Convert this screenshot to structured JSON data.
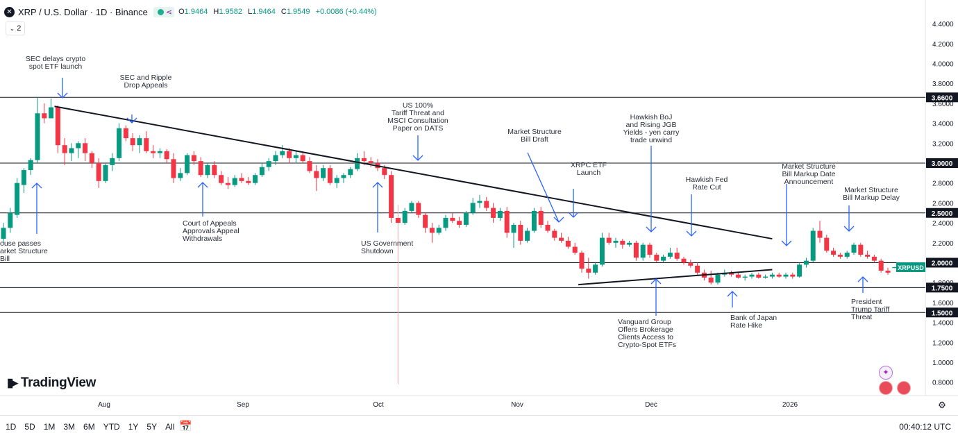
{
  "header": {
    "symbol_icon": "xrp-icon",
    "title": "XRP / U.S. Dollar · 1D · Binance",
    "ohlc": {
      "o_label": "O",
      "o": "1.9464",
      "h_label": "H",
      "h": "1.9582",
      "l_label": "L",
      "l": "1.9464",
      "c_label": "C",
      "c": "1.9549",
      "change": "+0.0086 (+0.44%)"
    },
    "indicator_count": "2",
    "collapse_icon": "chevron-down-icon"
  },
  "brand": {
    "name": "TradingView",
    "icon": "tradingview-logo"
  },
  "footer": {
    "ranges": [
      "1D",
      "5D",
      "1M",
      "3M",
      "6M",
      "YTD",
      "1Y",
      "5Y",
      "All"
    ],
    "date_range_icon": "calendar-arrow-icon",
    "clock": "00:40:12 UTC",
    "settings_icon": "gear-icon"
  },
  "chart_data": {
    "type": "candlestick",
    "symbol": "XRPUSD",
    "colors": {
      "up": "#089981",
      "down": "#f23645",
      "trendline": "#131722",
      "annotation": "#2962ff",
      "hline": "#131722",
      "last_price": "#089981"
    },
    "y_axis": {
      "min": 0.7,
      "max": 4.6,
      "ticks": [
        "4.4000",
        "4.2000",
        "4.0000",
        "3.8000",
        "3.6000",
        "3.4000",
        "3.2000",
        "3.0000",
        "2.8000",
        "2.6000",
        "2.4000",
        "2.2000",
        "2.0000",
        "1.8000",
        "1.6000",
        "1.4000",
        "1.2000",
        "1.0000",
        "0.8000"
      ]
    },
    "x_axis": {
      "labels": [
        "Aug",
        "Sep",
        "Oct",
        "Nov",
        "Dec",
        "2026"
      ]
    },
    "last_price": {
      "label": "XRPUSD",
      "value": 1.9549
    },
    "horizontal_lines": [
      {
        "label": "3.6600",
        "value": 3.66
      },
      {
        "label": "3.0000",
        "value": 3.0
      },
      {
        "label": "2.5000",
        "value": 2.5
      },
      {
        "label": "2.0000",
        "value": 2.0
      },
      {
        "label": "1.7500",
        "value": 1.75
      },
      {
        "label": "1.5000",
        "value": 1.5
      }
    ],
    "trendlines": [
      {
        "from": {
          "day": 15,
          "price": 3.57
        },
        "to": {
          "day": 226,
          "price": 2.24
        }
      },
      {
        "from": {
          "day": 169,
          "price": 1.78
        },
        "to": {
          "day": 226,
          "price": 1.93
        }
      }
    ],
    "candles": [
      {
        "day": 0,
        "o": 2.24,
        "h": 2.4,
        "l": 2.2,
        "c": 2.35
      },
      {
        "day": 2,
        "o": 2.35,
        "h": 2.55,
        "l": 2.3,
        "c": 2.5
      },
      {
        "day": 4,
        "o": 2.48,
        "h": 2.85,
        "l": 2.45,
        "c": 2.8
      },
      {
        "day": 6,
        "o": 2.78,
        "h": 2.95,
        "l": 2.7,
        "c": 2.93
      },
      {
        "day": 8,
        "o": 2.93,
        "h": 3.05,
        "l": 2.88,
        "c": 3.03
      },
      {
        "day": 10,
        "o": 3.03,
        "h": 3.66,
        "l": 3.0,
        "c": 3.5
      },
      {
        "day": 12,
        "o": 3.5,
        "h": 3.6,
        "l": 3.4,
        "c": 3.45
      },
      {
        "day": 14,
        "o": 3.45,
        "h": 3.65,
        "l": 3.45,
        "c": 3.56
      },
      {
        "day": 16,
        "o": 3.56,
        "h": 3.58,
        "l": 3.1,
        "c": 3.18
      },
      {
        "day": 18,
        "o": 3.18,
        "h": 3.25,
        "l": 2.98,
        "c": 3.1
      },
      {
        "day": 20,
        "o": 3.1,
        "h": 3.2,
        "l": 3.02,
        "c": 3.15
      },
      {
        "day": 22,
        "o": 3.15,
        "h": 3.22,
        "l": 3.05,
        "c": 3.2
      },
      {
        "day": 24,
        "o": 3.2,
        "h": 3.25,
        "l": 3.02,
        "c": 3.1
      },
      {
        "day": 26,
        "o": 3.1,
        "h": 3.12,
        "l": 2.95,
        "c": 3.0
      },
      {
        "day": 28,
        "o": 3.0,
        "h": 3.05,
        "l": 2.75,
        "c": 2.82
      },
      {
        "day": 30,
        "o": 2.82,
        "h": 3.0,
        "l": 2.8,
        "c": 2.98
      },
      {
        "day": 32,
        "o": 2.98,
        "h": 3.1,
        "l": 2.92,
        "c": 3.05
      },
      {
        "day": 34,
        "o": 3.05,
        "h": 3.4,
        "l": 3.02,
        "c": 3.35
      },
      {
        "day": 36,
        "o": 3.35,
        "h": 3.38,
        "l": 3.22,
        "c": 3.25
      },
      {
        "day": 38,
        "o": 3.25,
        "h": 3.3,
        "l": 3.12,
        "c": 3.18
      },
      {
        "day": 40,
        "o": 3.18,
        "h": 3.28,
        "l": 3.1,
        "c": 3.25
      },
      {
        "day": 42,
        "o": 3.25,
        "h": 3.32,
        "l": 3.1,
        "c": 3.12
      },
      {
        "day": 44,
        "o": 3.12,
        "h": 3.18,
        "l": 3.05,
        "c": 3.1
      },
      {
        "day": 46,
        "o": 3.1,
        "h": 3.15,
        "l": 3.05,
        "c": 3.12
      },
      {
        "day": 48,
        "o": 3.12,
        "h": 3.14,
        "l": 3.0,
        "c": 3.04
      },
      {
        "day": 50,
        "o": 3.04,
        "h": 3.1,
        "l": 2.8,
        "c": 2.85
      },
      {
        "day": 52,
        "o": 2.85,
        "h": 2.95,
        "l": 2.82,
        "c": 2.9
      },
      {
        "day": 54,
        "o": 2.9,
        "h": 3.1,
        "l": 2.88,
        "c": 3.08
      },
      {
        "day": 56,
        "o": 3.08,
        "h": 3.12,
        "l": 2.98,
        "c": 3.02
      },
      {
        "day": 58,
        "o": 3.02,
        "h": 3.06,
        "l": 2.86,
        "c": 2.88
      },
      {
        "day": 60,
        "o": 2.88,
        "h": 3.0,
        "l": 2.85,
        "c": 2.98
      },
      {
        "day": 62,
        "o": 2.98,
        "h": 3.02,
        "l": 2.85,
        "c": 2.88
      },
      {
        "day": 64,
        "o": 2.88,
        "h": 2.92,
        "l": 2.78,
        "c": 2.8
      },
      {
        "day": 66,
        "o": 2.8,
        "h": 2.86,
        "l": 2.74,
        "c": 2.78
      },
      {
        "day": 68,
        "o": 2.78,
        "h": 2.88,
        "l": 2.76,
        "c": 2.85
      },
      {
        "day": 70,
        "o": 2.85,
        "h": 2.9,
        "l": 2.8,
        "c": 2.82
      },
      {
        "day": 72,
        "o": 2.82,
        "h": 2.86,
        "l": 2.78,
        "c": 2.8
      },
      {
        "day": 74,
        "o": 2.8,
        "h": 2.9,
        "l": 2.78,
        "c": 2.88
      },
      {
        "day": 76,
        "o": 2.88,
        "h": 3.0,
        "l": 2.86,
        "c": 2.96
      },
      {
        "day": 78,
        "o": 2.96,
        "h": 3.05,
        "l": 2.92,
        "c": 3.02
      },
      {
        "day": 80,
        "o": 3.02,
        "h": 3.12,
        "l": 2.98,
        "c": 3.08
      },
      {
        "day": 82,
        "o": 3.08,
        "h": 3.18,
        "l": 3.05,
        "c": 3.12
      },
      {
        "day": 84,
        "o": 3.12,
        "h": 3.15,
        "l": 3.0,
        "c": 3.05
      },
      {
        "day": 86,
        "o": 3.05,
        "h": 3.12,
        "l": 3.0,
        "c": 3.08
      },
      {
        "day": 88,
        "o": 3.08,
        "h": 3.1,
        "l": 3.0,
        "c": 3.02
      },
      {
        "day": 90,
        "o": 3.02,
        "h": 3.06,
        "l": 2.9,
        "c": 2.92
      },
      {
        "day": 92,
        "o": 2.92,
        "h": 2.98,
        "l": 2.72,
        "c": 2.85
      },
      {
        "day": 94,
        "o": 2.85,
        "h": 2.98,
        "l": 2.82,
        "c": 2.95
      },
      {
        "day": 96,
        "o": 2.95,
        "h": 2.98,
        "l": 2.78,
        "c": 2.8
      },
      {
        "day": 98,
        "o": 2.8,
        "h": 2.88,
        "l": 2.75,
        "c": 2.85
      },
      {
        "day": 100,
        "o": 2.85,
        "h": 2.9,
        "l": 2.8,
        "c": 2.88
      },
      {
        "day": 102,
        "o": 2.88,
        "h": 2.96,
        "l": 2.85,
        "c": 2.94
      },
      {
        "day": 104,
        "o": 2.94,
        "h": 3.1,
        "l": 2.92,
        "c": 3.05
      },
      {
        "day": 106,
        "o": 3.05,
        "h": 3.12,
        "l": 2.98,
        "c": 3.02
      },
      {
        "day": 108,
        "o": 3.02,
        "h": 3.06,
        "l": 2.96,
        "c": 3.0
      },
      {
        "day": 110,
        "o": 3.0,
        "h": 3.04,
        "l": 2.92,
        "c": 2.95
      },
      {
        "day": 112,
        "o": 2.95,
        "h": 2.98,
        "l": 2.84,
        "c": 2.88
      },
      {
        "day": 114,
        "o": 2.88,
        "h": 2.92,
        "l": 2.4,
        "c": 2.45
      },
      {
        "day": 116,
        "o": 2.45,
        "h": 2.58,
        "l": 0.78,
        "c": 2.4
      },
      {
        "day": 118,
        "o": 2.4,
        "h": 2.55,
        "l": 2.38,
        "c": 2.52
      },
      {
        "day": 120,
        "o": 2.52,
        "h": 2.62,
        "l": 2.5,
        "c": 2.6
      },
      {
        "day": 122,
        "o": 2.6,
        "h": 2.62,
        "l": 2.45,
        "c": 2.48
      },
      {
        "day": 124,
        "o": 2.48,
        "h": 2.5,
        "l": 2.3,
        "c": 2.35
      },
      {
        "day": 126,
        "o": 2.35,
        "h": 2.4,
        "l": 2.2,
        "c": 2.3
      },
      {
        "day": 128,
        "o": 2.3,
        "h": 2.38,
        "l": 2.28,
        "c": 2.35
      },
      {
        "day": 130,
        "o": 2.35,
        "h": 2.48,
        "l": 2.32,
        "c": 2.45
      },
      {
        "day": 132,
        "o": 2.45,
        "h": 2.5,
        "l": 2.4,
        "c": 2.42
      },
      {
        "day": 134,
        "o": 2.42,
        "h": 2.46,
        "l": 2.35,
        "c": 2.38
      },
      {
        "day": 136,
        "o": 2.38,
        "h": 2.52,
        "l": 2.36,
        "c": 2.5
      },
      {
        "day": 138,
        "o": 2.5,
        "h": 2.65,
        "l": 2.48,
        "c": 2.6
      },
      {
        "day": 140,
        "o": 2.6,
        "h": 2.68,
        "l": 2.55,
        "c": 2.62
      },
      {
        "day": 142,
        "o": 2.62,
        "h": 2.66,
        "l": 2.52,
        "c": 2.55
      },
      {
        "day": 144,
        "o": 2.55,
        "h": 2.6,
        "l": 2.4,
        "c": 2.45
      },
      {
        "day": 146,
        "o": 2.45,
        "h": 2.55,
        "l": 2.42,
        "c": 2.52
      },
      {
        "day": 148,
        "o": 2.52,
        "h": 2.56,
        "l": 2.25,
        "c": 2.3
      },
      {
        "day": 150,
        "o": 2.3,
        "h": 2.4,
        "l": 2.15,
        "c": 2.38
      },
      {
        "day": 152,
        "o": 2.38,
        "h": 2.42,
        "l": 2.18,
        "c": 2.22
      },
      {
        "day": 154,
        "o": 2.22,
        "h": 2.35,
        "l": 2.2,
        "c": 2.32
      },
      {
        "day": 156,
        "o": 2.32,
        "h": 2.55,
        "l": 2.3,
        "c": 2.52
      },
      {
        "day": 158,
        "o": 2.52,
        "h": 2.56,
        "l": 2.35,
        "c": 2.38
      },
      {
        "day": 160,
        "o": 2.38,
        "h": 2.42,
        "l": 2.3,
        "c": 2.32
      },
      {
        "day": 162,
        "o": 2.32,
        "h": 2.34,
        "l": 2.22,
        "c": 2.25
      },
      {
        "day": 164,
        "o": 2.25,
        "h": 2.3,
        "l": 2.2,
        "c": 2.22
      },
      {
        "day": 166,
        "o": 2.22,
        "h": 2.26,
        "l": 2.14,
        "c": 2.16
      },
      {
        "day": 168,
        "o": 2.16,
        "h": 2.2,
        "l": 2.08,
        "c": 2.1
      },
      {
        "day": 170,
        "o": 2.1,
        "h": 2.12,
        "l": 1.9,
        "c": 1.94
      },
      {
        "day": 172,
        "o": 1.94,
        "h": 2.05,
        "l": 1.84,
        "c": 1.9
      },
      {
        "day": 174,
        "o": 1.9,
        "h": 2.0,
        "l": 1.88,
        "c": 1.98
      },
      {
        "day": 176,
        "o": 1.98,
        "h": 2.3,
        "l": 1.96,
        "c": 2.25
      },
      {
        "day": 178,
        "o": 2.25,
        "h": 2.3,
        "l": 2.18,
        "c": 2.2
      },
      {
        "day": 180,
        "o": 2.2,
        "h": 2.25,
        "l": 2.15,
        "c": 2.22
      },
      {
        "day": 182,
        "o": 2.22,
        "h": 2.24,
        "l": 2.14,
        "c": 2.18
      },
      {
        "day": 184,
        "o": 2.18,
        "h": 2.22,
        "l": 2.16,
        "c": 2.2
      },
      {
        "day": 186,
        "o": 2.2,
        "h": 2.22,
        "l": 2.02,
        "c": 2.05
      },
      {
        "day": 188,
        "o": 2.05,
        "h": 2.2,
        "l": 2.02,
        "c": 2.18
      },
      {
        "day": 190,
        "o": 2.18,
        "h": 2.2,
        "l": 2.05,
        "c": 2.08
      },
      {
        "day": 192,
        "o": 2.08,
        "h": 2.1,
        "l": 2.0,
        "c": 2.02
      },
      {
        "day": 194,
        "o": 2.02,
        "h": 2.08,
        "l": 2.0,
        "c": 2.06
      },
      {
        "day": 196,
        "o": 2.06,
        "h": 2.15,
        "l": 2.04,
        "c": 2.1
      },
      {
        "day": 198,
        "o": 2.1,
        "h": 2.15,
        "l": 2.02,
        "c": 2.04
      },
      {
        "day": 200,
        "o": 2.04,
        "h": 2.06,
        "l": 1.98,
        "c": 2.0
      },
      {
        "day": 202,
        "o": 2.0,
        "h": 2.03,
        "l": 1.95,
        "c": 1.97
      },
      {
        "day": 204,
        "o": 1.97,
        "h": 2.0,
        "l": 1.88,
        "c": 1.9
      },
      {
        "day": 206,
        "o": 1.9,
        "h": 1.93,
        "l": 1.82,
        "c": 1.85
      },
      {
        "day": 208,
        "o": 1.85,
        "h": 1.92,
        "l": 1.78,
        "c": 1.8
      },
      {
        "day": 210,
        "o": 1.8,
        "h": 1.9,
        "l": 1.78,
        "c": 1.88
      },
      {
        "day": 212,
        "o": 1.88,
        "h": 1.93,
        "l": 1.86,
        "c": 1.9
      },
      {
        "day": 214,
        "o": 1.9,
        "h": 1.92,
        "l": 1.86,
        "c": 1.88
      },
      {
        "day": 216,
        "o": 1.88,
        "h": 1.9,
        "l": 1.84,
        "c": 1.85
      },
      {
        "day": 218,
        "o": 1.85,
        "h": 1.88,
        "l": 1.82,
        "c": 1.86
      },
      {
        "day": 220,
        "o": 1.86,
        "h": 1.9,
        "l": 1.84,
        "c": 1.88
      },
      {
        "day": 222,
        "o": 1.88,
        "h": 1.9,
        "l": 1.84,
        "c": 1.85
      },
      {
        "day": 224,
        "o": 1.85,
        "h": 1.88,
        "l": 1.84,
        "c": 1.86
      }
    ],
    "candles_tail": [
      {
        "day": 226,
        "o": 1.86,
        "h": 1.9,
        "l": 1.84,
        "c": 1.88
      },
      {
        "day": 228,
        "o": 1.88,
        "h": 1.9,
        "l": 1.85,
        "c": 1.86
      },
      {
        "day": 230,
        "o": 1.86,
        "h": 1.9,
        "l": 1.84,
        "c": 1.88
      },
      {
        "day": 232,
        "o": 1.88,
        "h": 1.9,
        "l": 1.84,
        "c": 1.86
      },
      {
        "day": 234,
        "o": 1.86,
        "h": 2.0,
        "l": 1.85,
        "c": 1.98
      },
      {
        "day": 236,
        "o": 1.98,
        "h": 2.05,
        "l": 1.95,
        "c": 2.02
      },
      {
        "day": 238,
        "o": 2.02,
        "h": 2.35,
        "l": 2.0,
        "c": 2.32
      },
      {
        "day": 240,
        "o": 2.32,
        "h": 2.42,
        "l": 2.2,
        "c": 2.25
      },
      {
        "day": 242,
        "o": 2.25,
        "h": 2.28,
        "l": 2.1,
        "c": 2.12
      },
      {
        "day": 244,
        "o": 2.12,
        "h": 2.15,
        "l": 2.06,
        "c": 2.08
      },
      {
        "day": 246,
        "o": 2.08,
        "h": 2.1,
        "l": 2.04,
        "c": 2.06
      },
      {
        "day": 248,
        "o": 2.06,
        "h": 2.12,
        "l": 2.04,
        "c": 2.1
      },
      {
        "day": 250,
        "o": 2.1,
        "h": 2.2,
        "l": 2.08,
        "c": 2.18
      },
      {
        "day": 252,
        "o": 2.18,
        "h": 2.2,
        "l": 2.06,
        "c": 2.08
      },
      {
        "day": 254,
        "o": 2.08,
        "h": 2.12,
        "l": 2.04,
        "c": 2.06
      },
      {
        "day": 256,
        "o": 2.06,
        "h": 2.08,
        "l": 2.0,
        "c": 2.02
      },
      {
        "day": 258,
        "o": 2.02,
        "h": 2.04,
        "l": 1.9,
        "c": 1.92
      },
      {
        "day": 260,
        "o": 1.92,
        "h": 1.95,
        "l": 1.88,
        "c": 1.9
      },
      {
        "day": 262,
        "o": 1.946,
        "h": 1.958,
        "l": 1.946,
        "c": 1.955
      }
    ],
    "annotations": [
      {
        "text": [
          "SEC delays crypto",
          "spot ETF launch"
        ],
        "dir": "down"
      },
      {
        "text": [
          "SEC and Ripple",
          "Drop Appeals"
        ],
        "dir": "down"
      },
      {
        "text": [
          "US 100%",
          "Tariff Threat and",
          "MSCI Consultation",
          "Paper on DATS"
        ],
        "dir": "down"
      },
      {
        "text": [
          "Market Structure",
          "Bill Draft"
        ],
        "dir": "down"
      },
      {
        "text": [
          "XRPC ETF",
          "Launch"
        ],
        "dir": "down"
      },
      {
        "text": [
          "Hawkish BoJ",
          "and Rising JGB",
          "Yields - yen carry",
          "trade unwind"
        ],
        "dir": "down"
      },
      {
        "text": [
          "Hawkish Fed",
          "Rate Cut"
        ],
        "dir": "down"
      },
      {
        "text": [
          "Market Structure",
          "Bill Markup Date",
          "Announcement"
        ],
        "dir": "down"
      },
      {
        "text": [
          "Market Structure",
          "Bill Markup Delay"
        ],
        "dir": "down"
      },
      {
        "text": [
          "ouse passes",
          "arket Structure",
          "Bill"
        ],
        "dir": "up"
      },
      {
        "text": [
          "Court of Appeals",
          "Approvals Appeal",
          "Withdrawals"
        ],
        "dir": "up"
      },
      {
        "text": [
          "US Government",
          "Shutdown"
        ],
        "dir": "up"
      },
      {
        "text": [
          "Vanguard Group",
          "Offers Brokerage",
          "Clients Access to",
          "Crypto-Spot ETFs"
        ],
        "dir": "up"
      },
      {
        "text": [
          "Bank of Japan",
          "Rate Hike"
        ],
        "dir": "up"
      },
      {
        "text": [
          "President",
          "Trump Tariff",
          "Threat"
        ],
        "dir": "up"
      }
    ]
  }
}
